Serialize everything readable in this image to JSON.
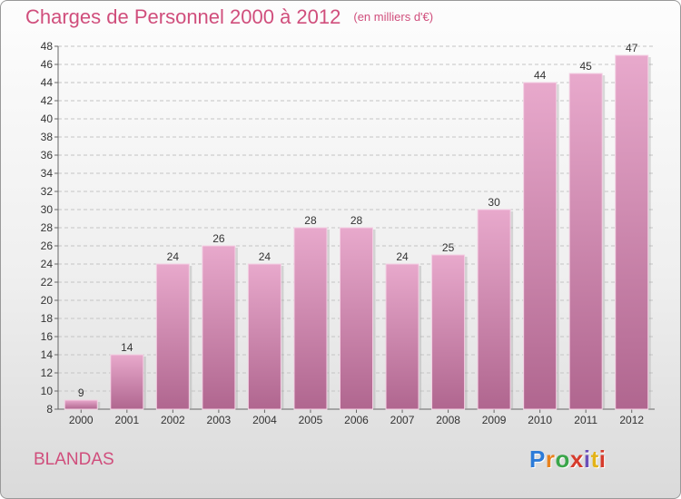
{
  "header": {
    "title": "Charges de Personnel 2000 à 2012",
    "subtitle": "(en milliers d'€)"
  },
  "footer": {
    "commune": "BLANDAS",
    "logo_text": "Proxiti"
  },
  "colors": {
    "accent": "#d04e7c",
    "bar_light": "#e8a9cc",
    "bar_dark": "#b0668f",
    "grid": "#bdbdbd"
  },
  "chart_data": {
    "type": "bar",
    "title": "Charges de Personnel 2000 à 2012",
    "subtitle": "(en milliers d'€)",
    "xlabel": "",
    "ylabel": "",
    "categories": [
      "2000",
      "2001",
      "2002",
      "2003",
      "2004",
      "2005",
      "2006",
      "2007",
      "2008",
      "2009",
      "2010",
      "2011",
      "2012"
    ],
    "values": [
      9,
      14,
      24,
      26,
      24,
      28,
      28,
      24,
      25,
      30,
      44,
      45,
      47
    ],
    "y_ticks": [
      8,
      10,
      12,
      14,
      16,
      18,
      20,
      22,
      24,
      26,
      28,
      30,
      32,
      34,
      36,
      38,
      40,
      42,
      44,
      46,
      48
    ],
    "ylim": [
      8,
      48
    ],
    "grid": true,
    "legend": "none",
    "data_labels": true
  }
}
